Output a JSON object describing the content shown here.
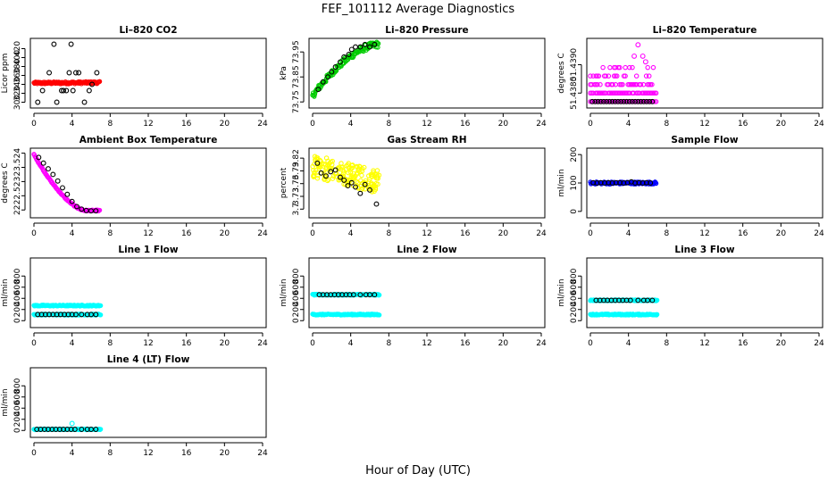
{
  "figure": {
    "title": "FEF_101112  Average Diagnostics",
    "xlabel": "Hour of Day (UTC)"
  },
  "chart_data": [
    {
      "type": "scatter",
      "title": "Li–820 CO2",
      "ylabel": "Licor ppm",
      "xlim": [
        0,
        24
      ],
      "xticks": [
        0,
        4,
        8,
        12,
        16,
        20,
        24
      ],
      "ylim": [
        295,
        435
      ],
      "yticks": [
        300,
        320,
        340,
        360,
        380,
        400,
        420
      ],
      "series": [
        {
          "name": "avg",
          "color": "#ff0000",
          "style": "dense",
          "x": [
            0,
            6.9
          ],
          "y_mid": [
            343,
            344
          ],
          "y_spread": 2.5
        },
        {
          "name": "check",
          "color": "#000000",
          "style": "points",
          "x": [
            0.4,
            0.9,
            1.6,
            2.1,
            2.4,
            2.9,
            3.1,
            3.4,
            3.7,
            3.9,
            4.1,
            4.4,
            4.7,
            5.3,
            5.8,
            6.1,
            6.6
          ],
          "y": [
            300,
            326,
            366,
            430,
            300,
            326,
            326,
            326,
            366,
            430,
            326,
            366,
            366,
            300,
            326,
            340,
            366
          ]
        }
      ]
    },
    {
      "type": "scatter",
      "title": "Li–820 Pressure",
      "ylabel": "kPa",
      "xlim": [
        0,
        24
      ],
      "xticks": [
        0,
        4,
        8,
        12,
        16,
        20,
        24
      ],
      "ylim": [
        73.74,
        73.99
      ],
      "yticks": [
        73.75,
        73.85,
        73.95
      ],
      "series": [
        {
          "name": "avg",
          "color": "#00cc00",
          "style": "dense",
          "curve": "pressure",
          "x": [
            0,
            6.9
          ],
          "y_spread": 0.012
        },
        {
          "name": "check",
          "color": "#000000",
          "style": "points",
          "x": [
            0.6,
            1.1,
            1.6,
            2.0,
            2.4,
            2.9,
            3.3,
            3.8,
            4.1,
            4.5,
            5.0,
            5.5,
            6.0,
            6.5
          ],
          "y": [
            73.8,
            73.83,
            73.85,
            73.87,
            73.89,
            73.91,
            73.93,
            73.94,
            73.96,
            73.97,
            73.97,
            73.98,
            73.97,
            73.98
          ]
        }
      ]
    },
    {
      "type": "scatter",
      "title": "Li–820 Temperature",
      "ylabel": "degrees C",
      "xlim": [
        0,
        24
      ],
      "xticks": [
        0,
        4,
        8,
        12,
        16,
        20,
        24
      ],
      "ylim": [
        51.4376,
        51.4398
      ],
      "ytick_values": [
        51.438,
        51.439
      ],
      "ytick_labels": [
        "51.4380",
        "51.4390"
      ],
      "series": [
        {
          "name": "avg",
          "color": "#ff00ff",
          "style": "levels",
          "x": [
            0,
            6.9
          ],
          "levels": [
            51.4377,
            51.438,
            51.4383,
            51.4386,
            51.4389
          ],
          "level_density": [
            0.95,
            0.95,
            0.55,
            0.35,
            0.25
          ]
        },
        {
          "name": "avg-high",
          "color": "#ff00ff",
          "style": "points",
          "x": [
            4.6,
            5.0,
            5.5,
            5.8
          ],
          "y": [
            51.4393,
            51.4397,
            51.4393,
            51.4391
          ]
        },
        {
          "name": "check",
          "color": "#000000",
          "style": "points",
          "x": [
            0.2,
            0.5,
            0.8,
            1.1,
            1.4,
            1.7,
            2.0,
            2.3,
            2.6,
            2.9,
            3.2,
            3.5,
            3.8,
            4.1,
            4.4,
            4.7,
            5.0,
            5.3,
            5.6,
            5.9,
            6.2,
            6.5
          ],
          "y": [
            51.4377,
            51.4377,
            51.4377,
            51.4377,
            51.4377,
            51.4377,
            51.4377,
            51.4377,
            51.4377,
            51.4377,
            51.4377,
            51.4377,
            51.4377,
            51.4377,
            51.4377,
            51.4377,
            51.4377,
            51.4377,
            51.4377,
            51.4377,
            51.4377,
            51.4377
          ]
        }
      ]
    },
    {
      "type": "scatter",
      "title": "Ambient Box Temperature",
      "ylabel": "degrees C",
      "xlim": [
        0,
        24
      ],
      "xticks": [
        0,
        4,
        8,
        12,
        16,
        20,
        24
      ],
      "ylim": [
        21.85,
        24.05
      ],
      "yticks": [
        22.0,
        22.5,
        23.0,
        23.5,
        24.0
      ],
      "series": [
        {
          "name": "avg",
          "color": "#ff00ff",
          "style": "dense",
          "curve": "ambient",
          "x": [
            0,
            6.9
          ],
          "y_spread": 0.02
        },
        {
          "name": "check",
          "color": "#000000",
          "style": "points",
          "x": [
            0.5,
            1.0,
            1.5,
            2.0,
            2.5,
            3.0,
            3.5,
            4.0,
            4.5,
            5.0,
            5.5,
            6.0,
            6.5
          ],
          "y": [
            23.85,
            23.65,
            23.45,
            23.25,
            23.02,
            22.78,
            22.55,
            22.3,
            22.12,
            22.03,
            21.98,
            21.97,
            21.97
          ]
        }
      ]
    },
    {
      "type": "scatter",
      "title": "Gas Stream RH",
      "ylabel": "percent",
      "xlim": [
        0,
        24
      ],
      "xticks": [
        0,
        4,
        8,
        12,
        16,
        20,
        24
      ],
      "ylim": [
        3.688,
        3.835
      ],
      "yticks": [
        3.7,
        3.73,
        3.76,
        3.79,
        3.82
      ],
      "series": [
        {
          "name": "avg",
          "color": "#ffff00",
          "style": "scatter-random",
          "x": [
            0,
            7.0
          ],
          "y_mid": [
            3.802,
            3.764
          ],
          "y_spread": 0.028
        },
        {
          "name": "check",
          "color": "#000000",
          "style": "points",
          "x": [
            0.5,
            0.9,
            1.4,
            1.9,
            2.4,
            2.9,
            3.3,
            3.7,
            4.1,
            4.5,
            5.0,
            5.5,
            6.0,
            6.7
          ],
          "y": [
            3.808,
            3.785,
            3.778,
            3.788,
            3.792,
            3.775,
            3.768,
            3.755,
            3.762,
            3.752,
            3.737,
            3.758,
            3.745,
            3.712
          ]
        }
      ]
    },
    {
      "type": "scatter",
      "title": "Sample Flow",
      "ylabel": "ml/min",
      "xlim": [
        0,
        24
      ],
      "xticks": [
        0,
        4,
        8,
        12,
        16,
        20,
        24
      ],
      "ylim": [
        -10,
        210
      ],
      "yticks": [
        0,
        100,
        200
      ],
      "series": [
        {
          "name": "avg",
          "color": "#0000ff",
          "style": "dense",
          "x": [
            0,
            6.9
          ],
          "y_mid": [
            100,
            100
          ],
          "y_spread": 4
        },
        {
          "name": "check",
          "color": "#000000",
          "style": "points",
          "x": [
            0.3,
            0.7,
            1.1,
            1.5,
            1.9,
            2.3,
            2.7,
            3.1,
            3.5,
            3.9,
            4.3,
            4.7,
            5.1,
            5.5,
            5.9,
            6.3
          ],
          "y": [
            101,
            100,
            101,
            100,
            101,
            100,
            101,
            101,
            100,
            101,
            104,
            100,
            101,
            100,
            101,
            100
          ]
        }
      ]
    },
    {
      "type": "scatter",
      "title": "Line 1 Flow",
      "ylabel": "ml/min",
      "xlim": [
        0,
        24
      ],
      "xticks": [
        0,
        4,
        8,
        12,
        16,
        20,
        24
      ],
      "ylim": [
        -60,
        1060
      ],
      "yticks": [
        0,
        200,
        400,
        600,
        800
      ],
      "series": [
        {
          "name": "avg-high",
          "color": "#00ffff",
          "style": "dense",
          "x": [
            0,
            7.0
          ],
          "y_mid": [
            270,
            270
          ],
          "y_spread": 10
        },
        {
          "name": "avg-low",
          "color": "#00ffff",
          "style": "dense",
          "x": [
            0,
            7.0
          ],
          "y_mid": [
            110,
            110
          ],
          "y_spread": 10
        },
        {
          "name": "check",
          "color": "#000000",
          "style": "points",
          "x": [
            0.4,
            0.8,
            1.2,
            1.6,
            2.0,
            2.4,
            2.8,
            3.2,
            3.6,
            4.0,
            4.4,
            5.0,
            5.6,
            6.0,
            6.5
          ],
          "y": [
            110,
            110,
            110,
            110,
            110,
            110,
            110,
            110,
            110,
            110,
            110,
            110,
            110,
            110,
            110
          ]
        }
      ]
    },
    {
      "type": "scatter",
      "title": "Line 2 Flow",
      "ylabel": "ml/min",
      "xlim": [
        0,
        24
      ],
      "xticks": [
        0,
        4,
        8,
        12,
        16,
        20,
        24
      ],
      "ylim": [
        -60,
        1060
      ],
      "yticks": [
        0,
        200,
        400,
        600,
        800
      ],
      "series": [
        {
          "name": "avg-high",
          "color": "#00ffff",
          "style": "dense",
          "x": [
            0,
            7.0
          ],
          "y_mid": [
            465,
            465
          ],
          "y_spread": 10
        },
        {
          "name": "avg-low",
          "color": "#00ffff",
          "style": "dense",
          "x": [
            0,
            7.0
          ],
          "y_mid": [
            110,
            110
          ],
          "y_spread": 10
        },
        {
          "name": "check",
          "color": "#000000",
          "style": "points",
          "x": [
            0.7,
            1.1,
            1.5,
            1.9,
            2.3,
            2.7,
            3.1,
            3.5,
            3.9,
            4.3,
            5.0,
            5.6,
            6.0,
            6.5
          ],
          "y": [
            465,
            465,
            465,
            465,
            465,
            465,
            465,
            465,
            465,
            465,
            465,
            465,
            465,
            465
          ]
        }
      ]
    },
    {
      "type": "scatter",
      "title": "Line 3 Flow",
      "ylabel": "ml/min",
      "xlim": [
        0,
        24
      ],
      "xticks": [
        0,
        4,
        8,
        12,
        16,
        20,
        24
      ],
      "ylim": [
        -60,
        1060
      ],
      "yticks": [
        0,
        200,
        400,
        600,
        800
      ],
      "series": [
        {
          "name": "avg-high",
          "color": "#00ffff",
          "style": "dense",
          "x": [
            0,
            7.0
          ],
          "y_mid": [
            365,
            365
          ],
          "y_spread": 10
        },
        {
          "name": "avg-low",
          "color": "#00ffff",
          "style": "dense",
          "x": [
            0,
            7.0
          ],
          "y_mid": [
            110,
            110
          ],
          "y_spread": 10
        },
        {
          "name": "check",
          "color": "#000000",
          "style": "points",
          "x": [
            0.6,
            1.0,
            1.4,
            1.8,
            2.2,
            2.6,
            3.0,
            3.4,
            3.8,
            4.2,
            5.0,
            5.6,
            6.0,
            6.5
          ],
          "y": [
            365,
            365,
            365,
            365,
            365,
            365,
            365,
            365,
            365,
            365,
            365,
            365,
            365,
            365
          ]
        }
      ]
    },
    {
      "type": "scatter",
      "title": "Line 4 (LT) Flow",
      "ylabel": "ml/min",
      "xlim": [
        0,
        24
      ],
      "xticks": [
        0,
        4,
        8,
        12,
        16,
        20,
        24
      ],
      "ylim": [
        -60,
        1060
      ],
      "yticks": [
        0,
        200,
        400,
        600,
        800
      ],
      "series": [
        {
          "name": "avg",
          "color": "#00ffff",
          "style": "dense",
          "x": [
            0,
            7.0
          ],
          "y_mid": [
            20,
            20
          ],
          "y_spread": 8
        },
        {
          "name": "avg-spike",
          "color": "#00ffff",
          "style": "points",
          "x": [
            4.0
          ],
          "y": [
            125
          ]
        },
        {
          "name": "check",
          "color": "#000000",
          "style": "points",
          "x": [
            0.3,
            0.7,
            1.1,
            1.5,
            1.9,
            2.3,
            2.7,
            3.1,
            3.5,
            3.9,
            4.3,
            5.0,
            5.6,
            6.0,
            6.5
          ],
          "y": [
            20,
            20,
            20,
            20,
            20,
            20,
            20,
            20,
            20,
            20,
            20,
            20,
            20,
            20,
            20
          ]
        }
      ]
    }
  ]
}
